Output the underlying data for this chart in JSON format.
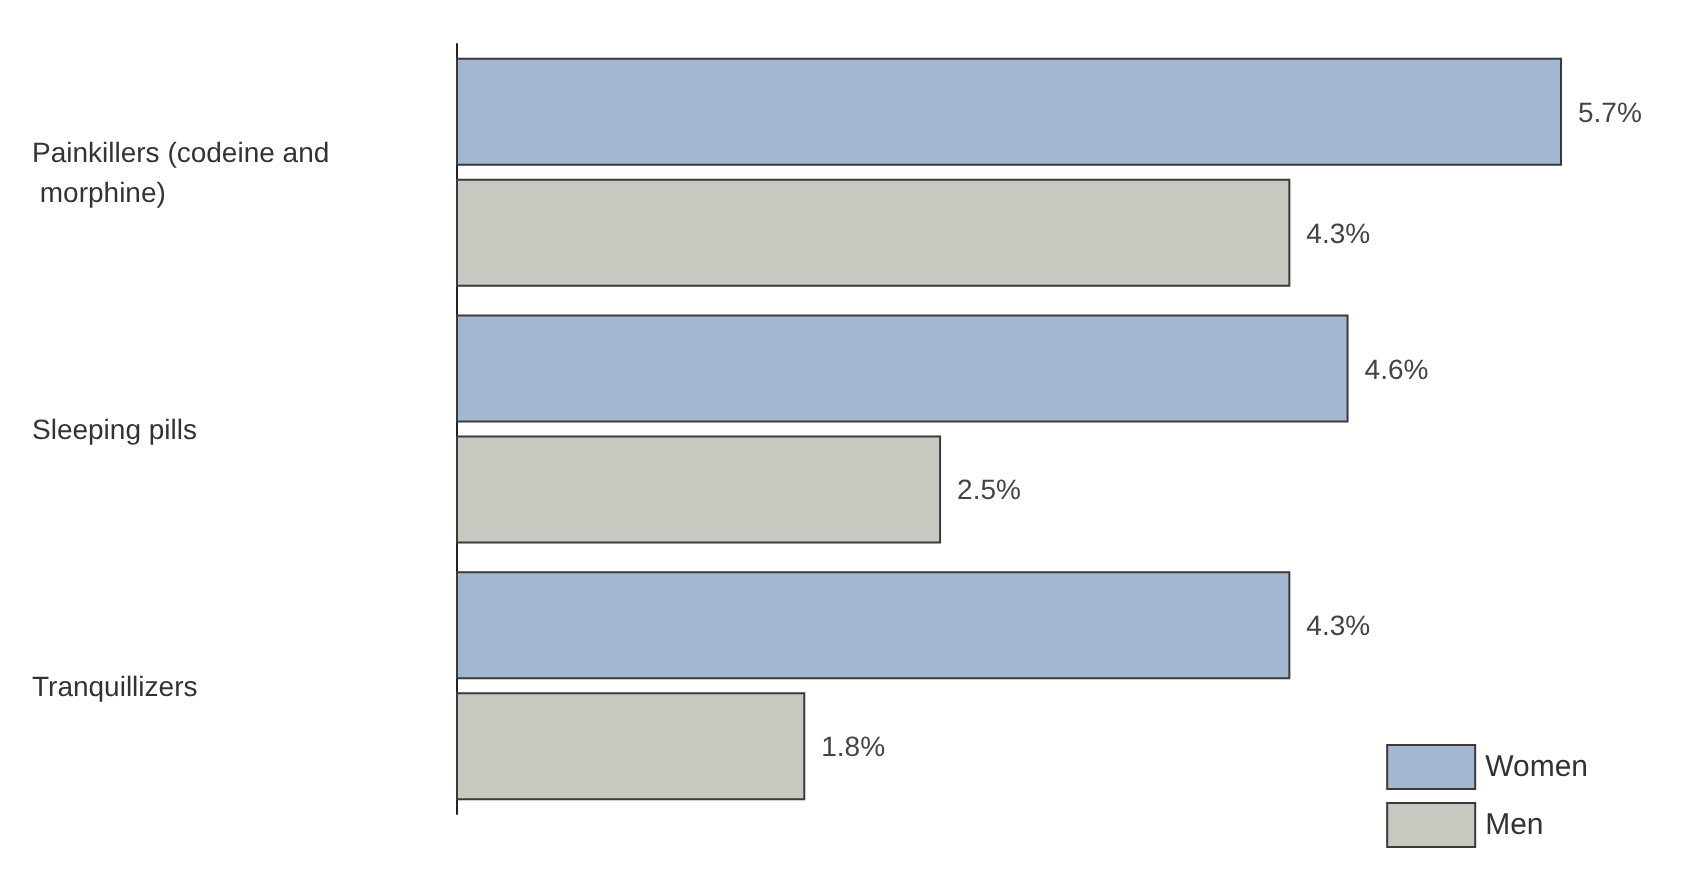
{
  "chart_data": {
    "type": "bar",
    "orientation": "horizontal",
    "categories": [
      "Painkillers (codeine and morphine)",
      "Sleeping pills",
      "Tranquillizers"
    ],
    "series": [
      {
        "name": "Women",
        "color": "#a3b8d0",
        "values": [
          5.7,
          4.6,
          4.3
        ],
        "value_labels": [
          "5.7%",
          "4.6%",
          "4.3%"
        ]
      },
      {
        "name": "Men",
        "color": "#c9c8c0",
        "values": [
          4.3,
          2.5,
          1.8
        ],
        "value_labels": [
          "4.3%",
          "2.5%",
          "1.8%"
        ]
      }
    ],
    "legend": "bottom right"
  }
}
